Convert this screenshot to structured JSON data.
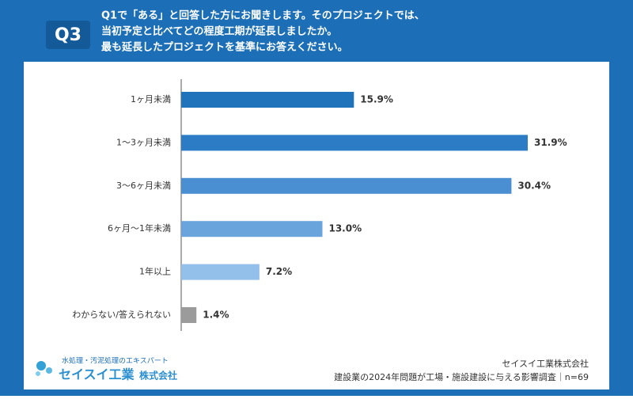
{
  "header": {
    "badge": "Q3",
    "lines": [
      "Q1で「ある」と回答した方にお聞きします。そのプロジェクトでは、",
      "当初予定と比べてどの程度工期が延長しましたか。",
      "最も延長したプロジェクトを基準にお答えください。"
    ]
  },
  "chart_data": {
    "type": "bar",
    "orientation": "horizontal",
    "categories": [
      "1ヶ月未満",
      "1〜3ヶ月未満",
      "3〜6ヶ月未満",
      "6ヶ月〜1年未満",
      "1年以上",
      "わからない/答えられない"
    ],
    "values": [
      15.9,
      31.9,
      30.4,
      13.0,
      7.2,
      1.4
    ],
    "value_labels": [
      "15.9%",
      "31.9%",
      "30.4%",
      "13.0%",
      "7.2%",
      "1.4%"
    ],
    "colors": [
      "#1f73bb",
      "#2b7cc4",
      "#4a8fd2",
      "#6aa4dd",
      "#93c0ea",
      "#9b9b9b"
    ]
  },
  "footer": {
    "tagline": "水処理・汚泥処理のエキスパート",
    "logo_name": "セイスイ工業",
    "logo_suffix": "株式会社",
    "company": "セイスイ工業株式会社",
    "survey": "建設業の2024年問題が工場・施設建設に与える影響調査｜n=69"
  }
}
